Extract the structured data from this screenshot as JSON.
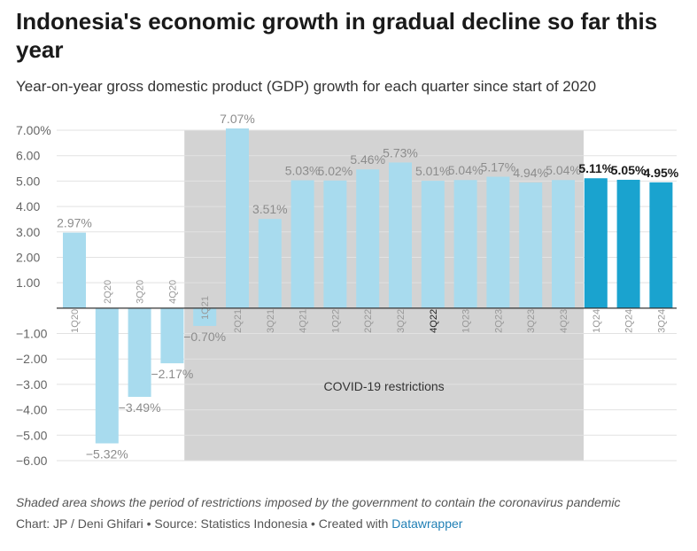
{
  "title": "Indonesia's economic growth in gradual decline so far this year",
  "subtitle": "Year-on-year gross domestic product (GDP) growth for each quarter since start of 2020",
  "note": "Shaded area shows the period of restrictions imposed by the government to contain the coronavirus pandemic",
  "credit": {
    "prefix": "Chart: JP / Deni Ghifari • Source: Statistics Indonesia • Created with ",
    "link": "Datawrapper"
  },
  "colors": {
    "light": "#a8dbee",
    "dark": "#1aa3cf",
    "shade": "#d3d3d3"
  },
  "chart_data": {
    "type": "bar",
    "categories": [
      "1Q20",
      "2Q20",
      "3Q20",
      "4Q20",
      "1Q21",
      "2Q21",
      "3Q21",
      "4Q21",
      "1Q22",
      "2Q22",
      "3Q22",
      "4Q22",
      "1Q23",
      "2Q23",
      "3Q23",
      "4Q23",
      "1Q24",
      "2Q24",
      "3Q24"
    ],
    "values": [
      2.97,
      -5.32,
      -3.49,
      -2.17,
      -0.7,
      7.07,
      3.51,
      5.03,
      5.02,
      5.46,
      5.73,
      5.01,
      5.04,
      5.17,
      4.94,
      5.04,
      5.11,
      5.05,
      4.95
    ],
    "value_labels": [
      "2.97%",
      "−5.32%",
      "−3.49%",
      "−2.17%",
      "−0.70%",
      "7.07%",
      "3.51%",
      "5.03%",
      "5.02%",
      "5.46%",
      "5.73%",
      "5.01%",
      "5.04%",
      "5.17%",
      "4.94%",
      "5.04%",
      "5.11%",
      "5.05%",
      "4.95%"
    ],
    "highlighted": [
      "1Q24",
      "2Q24",
      "3Q24"
    ],
    "y_ticks": [
      7,
      6,
      5,
      4,
      3,
      2,
      1,
      -1,
      -2,
      -3,
      -4,
      -5,
      -6
    ],
    "y_tick_labels": [
      "7.00%",
      "6.00",
      "5.00",
      "4.00",
      "3.00",
      "2.00",
      "1.00",
      "−1.00",
      "−2.00",
      "−3.00",
      "−4.00",
      "−5.00",
      "−6.00"
    ],
    "ylim": [
      -6,
      7
    ],
    "shaded_range": {
      "from": "1Q21",
      "to": "4Q23",
      "label": "COVID-19 restrictions"
    },
    "grid": true
  }
}
